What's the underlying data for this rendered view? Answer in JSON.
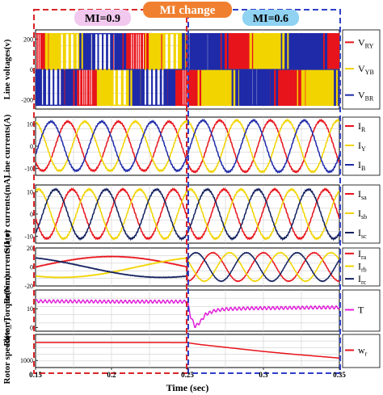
{
  "figure": {
    "header": "MI change",
    "region_left_label": "MI=0.9",
    "region_right_label": "MI=0.6",
    "xlabel": "Time (sec)",
    "colors": {
      "red": "#e8141b",
      "yellow": "#f2d400",
      "blue": "#1f2aa8",
      "navy": "#12205e",
      "magenta": "#e01ed8",
      "header_bg": "#f08030",
      "left_box": "#d8252a",
      "right_box": "#2f3fc8",
      "left_tag_bg": "#f2c8ef",
      "right_tag_bg": "#8fd2f2"
    }
  },
  "chart_data": [
    {
      "type": "line",
      "title": "",
      "ylabel": "Line voltages(v)",
      "xlim": [
        0.15,
        0.35
      ],
      "ylim": [
        -260,
        260
      ],
      "yticks": [
        "200",
        "0",
        "-200"
      ],
      "grid": true,
      "legend_position": "right",
      "series": [
        {
          "name": "V",
          "sub": "RY",
          "color": "#e8141b",
          "kind": "pwm",
          "amplitude_mi_0_9": 235,
          "amplitude_mi_0_6": 235,
          "frequency_hz": 15,
          "phase_deg": 0
        },
        {
          "name": "V",
          "sub": "YB",
          "color": "#f2d400",
          "kind": "pwm",
          "amplitude_mi_0_9": 235,
          "amplitude_mi_0_6": 235,
          "frequency_hz": 15,
          "phase_deg": -120
        },
        {
          "name": "V",
          "sub": "BR",
          "color": "#1f2aa8",
          "kind": "pwm",
          "amplitude_mi_0_9": 235,
          "amplitude_mi_0_6": 235,
          "frequency_hz": 15,
          "phase_deg": 120
        }
      ]
    },
    {
      "type": "line",
      "title": "",
      "ylabel": "Line currents(A)",
      "xlim": [
        0.15,
        0.35
      ],
      "ylim": [
        -13,
        13
      ],
      "yticks": [
        "10",
        "0",
        "-10"
      ],
      "grid": true,
      "legend_position": "right",
      "series": [
        {
          "name": "I",
          "sub": "R",
          "color": "#e8141b",
          "amplitude_mi_0_9": 11,
          "amplitude_mi_0_6": 11.5,
          "frequency_hz": 30,
          "phase_deg": 40
        },
        {
          "name": "I",
          "sub": "Y",
          "color": "#f2d400",
          "amplitude_mi_0_9": 11,
          "amplitude_mi_0_6": 11.5,
          "frequency_hz": 30,
          "phase_deg": -80
        },
        {
          "name": "I",
          "sub": "B",
          "color": "#1f2aa8",
          "amplitude_mi_0_9": 11,
          "amplitude_mi_0_6": 11.5,
          "frequency_hz": 30,
          "phase_deg": 160
        }
      ]
    },
    {
      "type": "line",
      "title": "",
      "ylabel": "Stator currents(mA)",
      "xlim": [
        0.15,
        0.35
      ],
      "ylim": [
        -13,
        13
      ],
      "yticks": [
        "10",
        "0",
        "-10"
      ],
      "grid": true,
      "legend_position": "right",
      "series": [
        {
          "name": "I",
          "sub": "sa",
          "color": "#e8141b",
          "amplitude_mi_0_9": 11,
          "amplitude_mi_0_6": 11,
          "frequency_hz": 30,
          "phase_deg": 10
        },
        {
          "name": "I",
          "sub": "sb",
          "color": "#f2d400",
          "amplitude_mi_0_9": 11,
          "amplitude_mi_0_6": 11,
          "frequency_hz": 30,
          "phase_deg": -110
        },
        {
          "name": "I",
          "sub": "sc",
          "color": "#12205e",
          "amplitude_mi_0_9": 11,
          "amplitude_mi_0_6": 11,
          "frequency_hz": 30,
          "phase_deg": 130
        }
      ]
    },
    {
      "type": "line",
      "title": "",
      "ylabel": "Rotor currents(I_r)",
      "xlim": [
        0.15,
        0.35
      ],
      "ylim": [
        -20,
        20
      ],
      "yticks": [
        "20",
        "0",
        "-20"
      ],
      "grid": true,
      "legend_position": "right",
      "series": [
        {
          "name": "I",
          "sub": "ra",
          "color": "#e8141b",
          "amplitude_mi_0_9": 11,
          "amplitude_mi_0_6": 15,
          "frequency_hz_mi_0_9": 5,
          "frequency_hz_mi_0_6": 30,
          "phase_deg": 90
        },
        {
          "name": "I",
          "sub": "rb",
          "color": "#f2d400",
          "amplitude_mi_0_9": 11,
          "amplitude_mi_0_6": 15,
          "frequency_hz_mi_0_9": 5,
          "frequency_hz_mi_0_6": 30,
          "phase_deg": -30
        },
        {
          "name": "I",
          "sub": "rc",
          "color": "#12205e",
          "amplitude_mi_0_9": 11,
          "amplitude_mi_0_6": 15,
          "frequency_hz_mi_0_9": 5,
          "frequency_hz_mi_0_6": 30,
          "phase_deg": 210
        }
      ]
    },
    {
      "type": "line",
      "title": "",
      "ylabel": "Rotor Torque(Nm)",
      "xlim": [
        0.15,
        0.35
      ],
      "ylim": [
        -2,
        20
      ],
      "yticks": [
        "10",
        "0"
      ],
      "grid": true,
      "legend_position": "right",
      "series": [
        {
          "name": "T",
          "sub": "",
          "color": "#e01ed8",
          "x": [
            0.15,
            0.2,
            0.249,
            0.25,
            0.252,
            0.255,
            0.258,
            0.262,
            0.268,
            0.275,
            0.29,
            0.31,
            0.33,
            0.35
          ],
          "y": [
            14,
            13.8,
            13.8,
            13.5,
            6,
            0.5,
            2.5,
            7,
            9,
            9.8,
            10.2,
            10.4,
            10.6,
            10.7
          ],
          "ripple": 0.8
        }
      ]
    },
    {
      "type": "line",
      "title": "",
      "ylabel": "Rotor speed(w_r)",
      "xlim": [
        0.15,
        0.35
      ],
      "ylim": [
        850,
        1550
      ],
      "yticks": [
        "1000"
      ],
      "grid": true,
      "legend_position": "right",
      "series": [
        {
          "name": "w",
          "sub": "r",
          "color": "#e8141b",
          "x": [
            0.15,
            0.2,
            0.249,
            0.26,
            0.28,
            0.3,
            0.32,
            0.35
          ],
          "y": [
            1380,
            1380,
            1378,
            1330,
            1260,
            1190,
            1130,
            1050
          ]
        }
      ]
    }
  ],
  "x_axis": {
    "ticks": [
      0.15,
      0.2,
      0.25,
      0.3,
      0.35
    ],
    "tick_labels": [
      "0.15",
      "0.2",
      "0.25",
      "0.3",
      "0.35"
    ]
  }
}
